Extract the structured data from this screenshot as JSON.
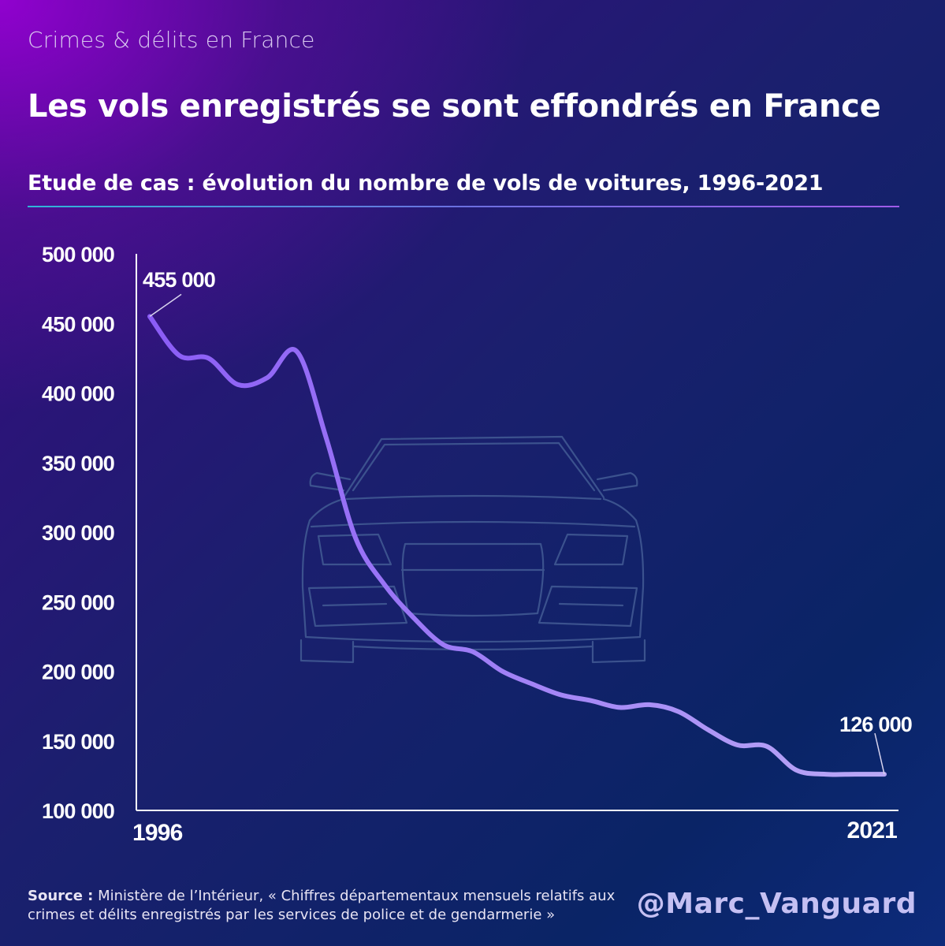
{
  "header": {
    "kicker": "Crimes & délits en France",
    "title": "Les vols enregistrés se sont effondrés en France",
    "subtitle": "Etude de cas : évolution du nombre de vols de voitures, 1996-2021"
  },
  "chart_data": {
    "type": "line",
    "title": "Etude de cas : évolution du nombre de vols de voitures, 1996-2021",
    "xlabel": "",
    "ylabel": "",
    "ylim": [
      100000,
      500000
    ],
    "xlim": [
      1996,
      2021
    ],
    "y_ticks": [
      {
        "value": 500000,
        "label": "500 000"
      },
      {
        "value": 450000,
        "label": "450 000"
      },
      {
        "value": 400000,
        "label": "400 000"
      },
      {
        "value": 350000,
        "label": "350 000"
      },
      {
        "value": 300000,
        "label": "300 000"
      },
      {
        "value": 250000,
        "label": "250 000"
      },
      {
        "value": 200000,
        "label": "200 000"
      },
      {
        "value": 150000,
        "label": "150 000"
      },
      {
        "value": 100000,
        "label": "100 000"
      }
    ],
    "x_ticks": [
      {
        "value": 1996,
        "label": "1996"
      },
      {
        "value": 2021,
        "label": "2021"
      }
    ],
    "series": [
      {
        "name": "Vols de voitures",
        "x": [
          1996,
          1997,
          1998,
          1999,
          2000,
          2001,
          2002,
          2003,
          2004,
          2005,
          2006,
          2007,
          2008,
          2009,
          2010,
          2011,
          2012,
          2013,
          2014,
          2015,
          2016,
          2017,
          2018,
          2019,
          2020,
          2021
        ],
        "values": [
          455000,
          427000,
          425000,
          406000,
          411000,
          430000,
          368000,
          296000,
          262000,
          238000,
          219000,
          214000,
          200000,
          191000,
          183000,
          179000,
          174000,
          176000,
          171000,
          158000,
          147000,
          146000,
          129000,
          126000,
          126000,
          126000
        ]
      }
    ],
    "annotations": [
      {
        "x": 1996,
        "y": 455000,
        "text": "455 000"
      },
      {
        "x": 2021,
        "y": 126000,
        "text": "126 000"
      }
    ],
    "grid": false,
    "legend": "none"
  },
  "footer": {
    "source_label": "Source :",
    "source_text": "Ministère de l’Intérieur, « Chiffres départementaux mensuels relatifs aux crimes et délits enregistrés par les services de police et de gendarmerie »",
    "handle": "@Marc_Vanguard"
  },
  "colors": {
    "line_start": "#8b5cf6",
    "line_end": "#b9a8f6",
    "axis": "#ffffff",
    "car_outline": "#3e5590"
  }
}
